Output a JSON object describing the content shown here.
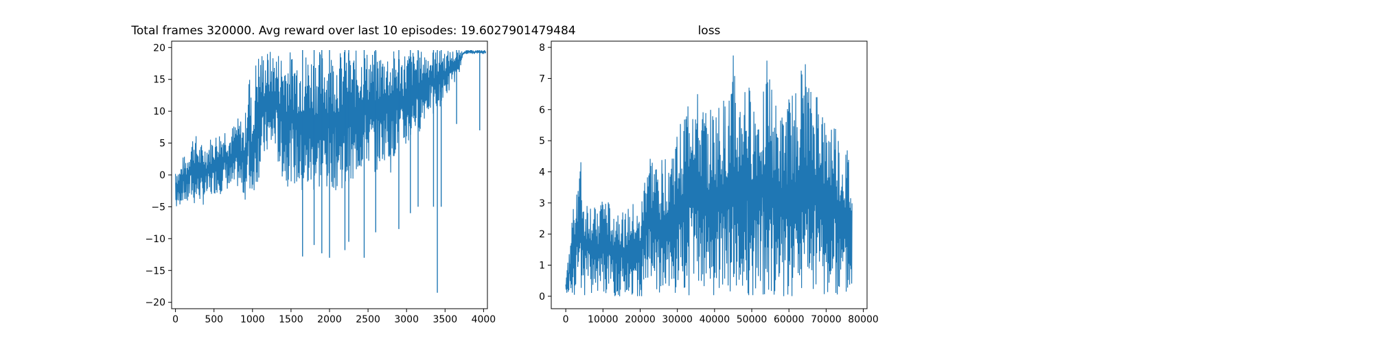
{
  "chart_data": [
    {
      "type": "line",
      "title": "Total frames 320000. Avg reward over last 10 episodes: 19.6027901479484",
      "xlabel": "",
      "ylabel": "",
      "xlim": [
        -50,
        4050
      ],
      "ylim": [
        -21,
        21
      ],
      "xticks": [
        0,
        500,
        1000,
        1500,
        2000,
        2500,
        3000,
        3500,
        4000
      ],
      "yticks": [
        -20,
        -15,
        -10,
        -5,
        0,
        5,
        10,
        15,
        20
      ],
      "grid": false,
      "color": "#1f77b4",
      "series": [
        {
          "x": [
            0,
            50,
            100,
            150,
            200,
            250,
            300,
            350,
            400,
            450,
            500,
            550,
            600,
            650,
            700,
            750,
            800,
            850,
            900,
            950,
            1000,
            1050,
            1100,
            1150,
            1200,
            1250,
            1300,
            1350,
            1400,
            1450,
            1500,
            1550,
            1600,
            1650,
            1700,
            1750,
            1800,
            1850,
            1900,
            1950,
            2000,
            2050,
            2100,
            2150,
            2200,
            2250,
            2300,
            2350,
            2400,
            2450,
            2500,
            2550,
            2600,
            2650,
            2700,
            2750,
            2800,
            2850,
            2900,
            2950,
            3000,
            3050,
            3100,
            3150,
            3200,
            3250,
            3300,
            3350,
            3400,
            3450,
            3500,
            3550,
            3600,
            3650,
            3700,
            3750,
            3800,
            3850,
            3900,
            3950,
            4000,
            4030
          ],
          "min": [
            -6,
            -5,
            -4,
            -5,
            -4,
            -5,
            -4,
            -5,
            -4,
            -4,
            -3,
            -3,
            -3,
            -2,
            -3,
            -3,
            -2,
            -3,
            -4,
            -4,
            -3,
            -2,
            0,
            2,
            3,
            3,
            4,
            0,
            -1,
            -2,
            -1,
            -2,
            -3,
            -4,
            -4,
            -3,
            -3,
            -3,
            -2,
            -3,
            -2,
            -2,
            -3,
            -2,
            -3,
            -1,
            -4,
            0,
            0,
            2,
            1,
            2,
            0,
            1,
            2,
            3,
            0,
            3,
            4,
            3,
            4,
            5,
            7,
            6,
            8,
            9,
            10,
            9,
            10,
            11,
            12,
            13,
            15,
            14,
            17,
            19,
            19,
            19,
            19,
            19,
            19,
            19
          ],
          "max": [
            2,
            1,
            3,
            3,
            6,
            7,
            5,
            5,
            5,
            6,
            6,
            7,
            7,
            8,
            7,
            8,
            9,
            9,
            8,
            19,
            9,
            19.6,
            19.6,
            19.6,
            19.6,
            19.6,
            19.6,
            19.6,
            19.6,
            19.6,
            19.6,
            19.6,
            19.6,
            19.6,
            19.6,
            19.6,
            19.6,
            19.6,
            19.6,
            19.6,
            19.6,
            19.6,
            19.6,
            19.6,
            19.6,
            19.6,
            19.6,
            19.6,
            19.6,
            19.6,
            19.6,
            19.6,
            19.6,
            19.6,
            19.6,
            19.6,
            19.6,
            19.6,
            19.6,
            19.6,
            19.6,
            19.6,
            19.6,
            19.6,
            19.6,
            19.6,
            19.6,
            19.6,
            19.6,
            19.6,
            19.6,
            19.6,
            19.6,
            19.6,
            19.6,
            19.6,
            19.6,
            19.6,
            19.6,
            19.6,
            19.6,
            19.6
          ]
        }
      ],
      "spikes": [
        [
          1650,
          -12.8
        ],
        [
          1800,
          -11
        ],
        [
          1900,
          -12.3
        ],
        [
          2000,
          -13
        ],
        [
          2200,
          -11.8
        ],
        [
          2250,
          -10.5
        ],
        [
          2450,
          -13
        ],
        [
          2600,
          -9
        ],
        [
          2900,
          -8.5
        ],
        [
          3050,
          -6
        ],
        [
          3150,
          -5
        ],
        [
          3350,
          -5
        ],
        [
          3400,
          -18.5
        ],
        [
          3450,
          -5
        ],
        [
          3650,
          8
        ],
        [
          3950,
          7
        ]
      ]
    },
    {
      "type": "line",
      "title": "loss",
      "xlabel": "",
      "ylabel": "",
      "xlim": [
        -3900,
        81000
      ],
      "ylim": [
        -0.4,
        8.2
      ],
      "xticks": [
        0,
        10000,
        20000,
        30000,
        40000,
        50000,
        60000,
        70000,
        80000
      ],
      "yticks": [
        0,
        1,
        2,
        3,
        4,
        5,
        6,
        7,
        8
      ],
      "grid": false,
      "color": "#1f77b4",
      "series": [
        {
          "x": [
            0,
            1000,
            2000,
            3000,
            4000,
            5000,
            6000,
            8000,
            10000,
            12000,
            14000,
            16000,
            18000,
            20000,
            22000,
            24000,
            26000,
            28000,
            30000,
            32000,
            34000,
            36000,
            38000,
            40000,
            42000,
            44000,
            45000,
            46000,
            48000,
            50000,
            52000,
            54000,
            56000,
            58000,
            60000,
            62000,
            64000,
            66000,
            68000,
            70000,
            72000,
            74000,
            76000,
            77000
          ],
          "min": [
            0.1,
            0.1,
            0.05,
            0,
            0,
            0,
            0,
            0,
            0,
            0,
            0,
            0,
            0,
            0,
            0,
            0,
            0,
            0,
            0,
            0,
            0,
            0,
            0,
            0,
            0,
            0,
            0,
            0,
            0,
            0,
            0,
            0,
            0,
            0,
            0,
            0,
            0,
            0,
            0,
            0,
            0,
            0,
            0,
            0
          ],
          "max": [
            0.6,
            1.5,
            3.1,
            4.1,
            4.5,
            3.0,
            3.3,
            2.8,
            3.5,
            2.9,
            3.0,
            2.7,
            3.0,
            2.6,
            5.0,
            4.4,
            4.4,
            4.9,
            5.3,
            6.1,
            7.3,
            6.2,
            6.1,
            6.1,
            6.3,
            6.4,
            7.9,
            6.1,
            7.2,
            6.5,
            6.6,
            7.9,
            6.3,
            5.8,
            6.4,
            6.7,
            7.8,
            6.5,
            7.0,
            5.4,
            6.0,
            4.9,
            4.7,
            3.6
          ]
        }
      ]
    }
  ]
}
